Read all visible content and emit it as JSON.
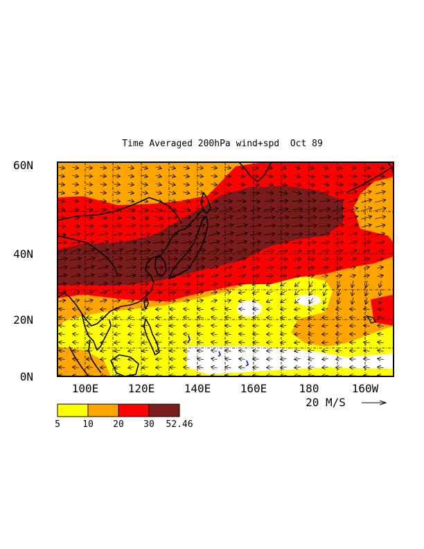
{
  "title": "Time Averaged 200hPa wind+spd  Oct 89",
  "axes": {
    "lat_labels": [
      "60N",
      "40N",
      "20N",
      "0N"
    ],
    "lon_labels": [
      "100E",
      "120E",
      "140E",
      "160E",
      "180",
      "160W"
    ]
  },
  "map": {
    "lon_range": [
      "90E",
      "150W"
    ],
    "lat_range": [
      "0N",
      "60N"
    ]
  },
  "vector_reference": {
    "label": "20 M/S",
    "value": 20
  },
  "colorbar": {
    "bounds": [
      "5",
      "10",
      "20",
      "30",
      "52.46"
    ],
    "colors": [
      "#ffff00",
      "#ffa500",
      "#ff0000",
      "#7b1c1c"
    ]
  },
  "colors": {
    "under_5": "#ffffff",
    "from_5_to_10": "#ffff00",
    "from_10_to_20": "#ffa500",
    "from_20_to_30": "#ff0000",
    "from_30_to_52_46": "#7b1c1c",
    "coastline": "#000000",
    "islands": "#0000ff"
  }
}
